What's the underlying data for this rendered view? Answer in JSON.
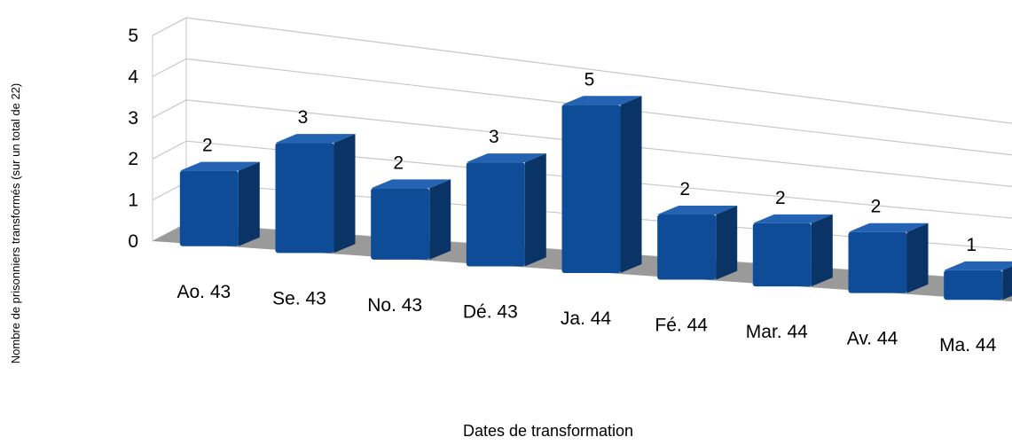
{
  "chart_data": {
    "type": "bar",
    "title": "",
    "xlabel": "Dates de transformation",
    "ylabel": "Nombre de prisonniers transformés (sur un total de 22)",
    "categories": [
      "Ao. 43",
      "Se. 43",
      "No. 43",
      "Dé. 43",
      "Ja. 44",
      "Fé. 44",
      "Mar. 44",
      "Av. 44",
      "Ma. 44"
    ],
    "values": [
      2,
      3,
      2,
      3,
      5,
      2,
      2,
      2,
      1
    ],
    "data_labels": [
      "2",
      "3",
      "2",
      "3",
      "5",
      "2",
      "2",
      "2",
      "1"
    ],
    "yticks": [
      "0",
      "1",
      "2",
      "3",
      "4",
      "5"
    ],
    "ylim": [
      0,
      5
    ],
    "grid": true,
    "legend": "none",
    "style": "3d-column",
    "colors": {
      "bar_front": "#0f4c97",
      "bar_side": "#0a3466",
      "bar_top": "#2463b3",
      "floor": "#9a9a9a",
      "grid": "#c8c8c8"
    }
  }
}
